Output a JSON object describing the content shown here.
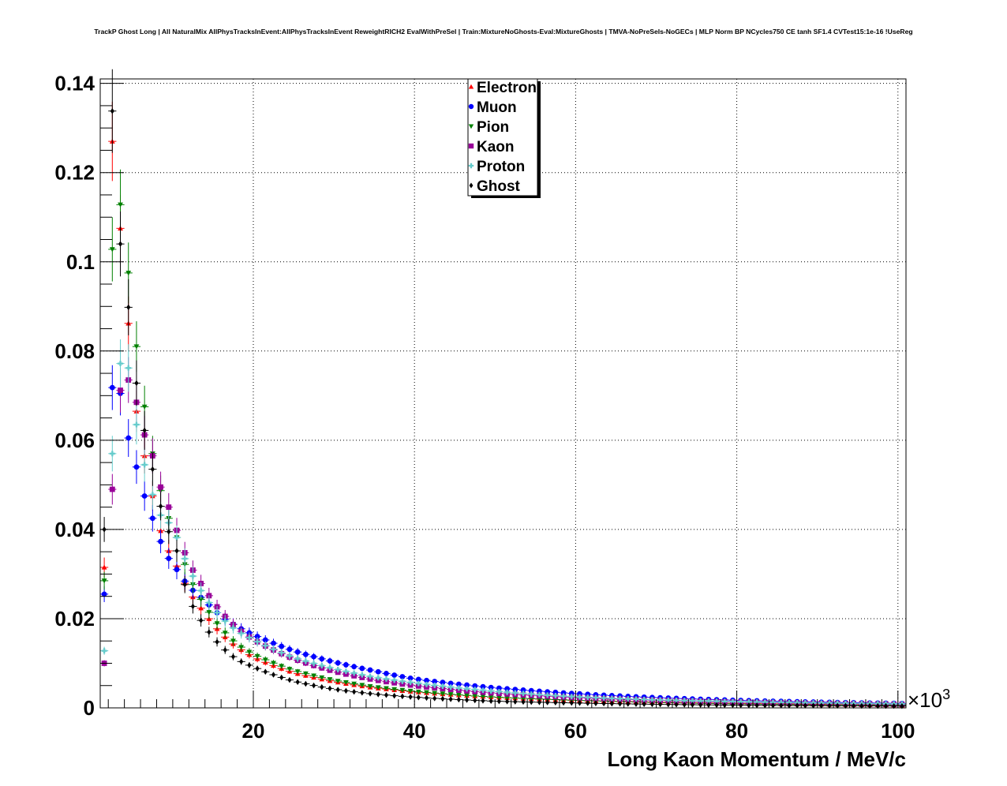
{
  "chart_data": {
    "type": "scatter",
    "title": "TrackP Ghost Long | All NaturalMix AllPhysTracksInEvent:AllPhysTracksInEvent ReweightRICH2 EvalWithPreSel | Train:MixtureNoGhosts-Eval:MixtureGhosts | TMVA-NoPreSels-NoGECs | MLP Norm BP NCycles750 CE tanh SF1.4 CVTest15:1e-16 !UseReg",
    "xlabel": "Long Kaon Momentum / MeV/c",
    "ylabel": "",
    "x_multiplier_label": "×10",
    "x_multiplier_exponent": "3",
    "xlim": [
      1,
      101
    ],
    "ylim": [
      0,
      0.141
    ],
    "x_ticks": [
      20,
      40,
      60,
      80,
      100
    ],
    "x_tick_labels": [
      "20",
      "40",
      "60",
      "80",
      "100"
    ],
    "y_ticks": [
      0,
      0.02,
      0.04,
      0.06,
      0.08,
      0.1,
      0.12,
      0.14
    ],
    "y_tick_labels": [
      "0",
      "0.02",
      "0.04",
      "0.06",
      "0.08",
      "0.1",
      "0.12",
      "0.14"
    ],
    "grid": true,
    "legend_position": "top-center",
    "bins": {
      "start": 1,
      "width": 1,
      "count": 100
    },
    "anchor_x": [
      1.5,
      2.5,
      3.5,
      4.5,
      5.5,
      6.5,
      7.5,
      8.5,
      9.5,
      10.5,
      12,
      14,
      16,
      18,
      20,
      25,
      30,
      35,
      40,
      50,
      60,
      70,
      80,
      90,
      100.5
    ],
    "series": [
      {
        "name": "Electron",
        "color": "#ff0000",
        "marker": "triangle-up",
        "anchor_y": [
          0.0315,
          0.127,
          0.1075,
          0.0862,
          0.0665,
          0.0565,
          0.0475,
          0.0397,
          0.0352,
          0.0318,
          0.0262,
          0.0212,
          0.0167,
          0.0136,
          0.0114,
          0.0079,
          0.0059,
          0.0045,
          0.0036,
          0.0024,
          0.0017,
          0.0013,
          0.001,
          0.0008,
          0.0006
        ]
      },
      {
        "name": "Muon",
        "color": "#0000ff",
        "marker": "circle",
        "anchor_y": [
          0.0255,
          0.0718,
          0.0705,
          0.0605,
          0.054,
          0.0475,
          0.0425,
          0.0373,
          0.0335,
          0.031,
          0.0272,
          0.024,
          0.0205,
          0.0182,
          0.0164,
          0.0128,
          0.0103,
          0.0083,
          0.0065,
          0.0045,
          0.0032,
          0.0023,
          0.0017,
          0.0013,
          0.001
        ]
      },
      {
        "name": "Pion",
        "color": "#008000",
        "marker": "triangle-down",
        "anchor_y": [
          0.0285,
          0.1028,
          0.1128,
          0.0975,
          0.081,
          0.0675,
          0.057,
          0.0487,
          0.0425,
          0.0382,
          0.0295,
          0.0228,
          0.0178,
          0.0142,
          0.012,
          0.0084,
          0.0062,
          0.0047,
          0.0037,
          0.0024,
          0.0017,
          0.0012,
          0.0009,
          0.0007,
          0.0006
        ]
      },
      {
        "name": "Kaon",
        "color": "#990099",
        "marker": "square",
        "anchor_y": [
          0.01,
          0.049,
          0.0712,
          0.0735,
          0.0685,
          0.0612,
          0.0565,
          0.0495,
          0.045,
          0.0398,
          0.0325,
          0.0265,
          0.0215,
          0.0178,
          0.0153,
          0.011,
          0.0082,
          0.0063,
          0.005,
          0.0033,
          0.0023,
          0.0017,
          0.0013,
          0.001,
          0.0008
        ]
      },
      {
        "name": "Proton",
        "color": "#66cccc",
        "marker": "cross",
        "anchor_y": [
          0.0128,
          0.057,
          0.0772,
          0.0762,
          0.0635,
          0.0545,
          0.0478,
          0.0432,
          0.0415,
          0.0382,
          0.0313,
          0.0248,
          0.0203,
          0.0172,
          0.0153,
          0.0113,
          0.0088,
          0.0069,
          0.0056,
          0.0037,
          0.0025,
          0.0018,
          0.0014,
          0.0011,
          0.0009
        ]
      },
      {
        "name": "Ghost",
        "color": "#000000",
        "marker": "diamond",
        "anchor_y": [
          0.04,
          0.1338,
          0.104,
          0.0898,
          0.0728,
          0.0622,
          0.0535,
          0.0452,
          0.0395,
          0.0352,
          0.0245,
          0.0182,
          0.0138,
          0.0108,
          0.0092,
          0.006,
          0.0042,
          0.0031,
          0.0024,
          0.0015,
          0.0011,
          0.0008,
          0.0006,
          0.0005,
          0.0004
        ]
      }
    ]
  }
}
